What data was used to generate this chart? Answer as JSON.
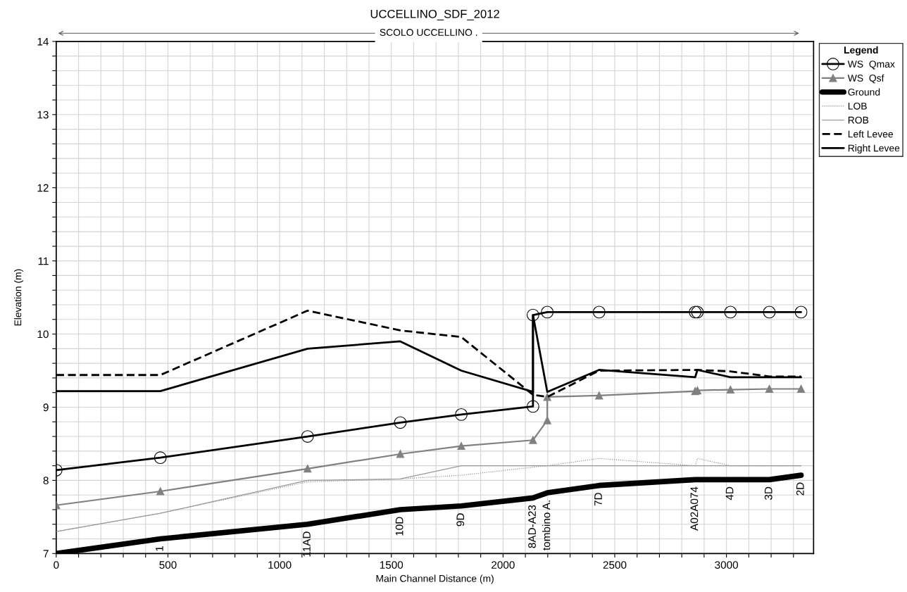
{
  "chart_data": {
    "type": "line",
    "title": "UCCELLINO_SDF_2012",
    "xlabel": "Main Channel Distance (m)",
    "ylabel": "Elevation (m)",
    "legend_title": "Legend",
    "series": [
      {
        "name": "WS  Qmax",
        "color": "#000000",
        "marker": "circle",
        "line_style": "solid",
        "x": [
          0,
          466,
          1125,
          1540,
          1813,
          2134,
          2134,
          2198,
          2430,
          2860,
          2870,
          3018,
          3192,
          3334
        ],
        "values": [
          8.14,
          8.31,
          8.6,
          8.79,
          8.9,
          9.01,
          10.26,
          10.3,
          10.3,
          10.3,
          10.3,
          10.3,
          10.3,
          10.3
        ]
      },
      {
        "name": "WS  Qsf",
        "color": "#808080",
        "marker": "triangle",
        "line_style": "solid",
        "x": [
          0,
          466,
          1125,
          1540,
          1813,
          2134,
          2198,
          2198,
          2430,
          2860,
          2870,
          3018,
          3192,
          3334
        ],
        "values": [
          7.66,
          7.85,
          8.16,
          8.36,
          8.47,
          8.55,
          8.82,
          9.14,
          9.16,
          9.22,
          9.23,
          9.24,
          9.25,
          9.25
        ]
      },
      {
        "name": "Ground",
        "color": "#000000",
        "marker": "none",
        "line_style": "solid",
        "x": [
          0,
          466,
          1125,
          1540,
          1813,
          2134,
          2198,
          2430,
          2860,
          3018,
          3192,
          3334
        ],
        "values": [
          7.0,
          7.2,
          7.4,
          7.6,
          7.65,
          7.76,
          7.83,
          7.93,
          8.01,
          8.01,
          8.01,
          8.07
        ]
      },
      {
        "name": "LOB",
        "color": "#808080",
        "marker": "none",
        "line_style": "dotted",
        "x": [
          0,
          466,
          1125,
          1540,
          1813,
          2134,
          2198,
          2430,
          2860,
          2870,
          3018,
          3192,
          3334
        ],
        "values": [
          7.3,
          7.55,
          7.98,
          8.02,
          8.07,
          8.18,
          8.2,
          8.3,
          8.2,
          8.3,
          8.2,
          8.2,
          8.2
        ]
      },
      {
        "name": "ROB",
        "color": "#999999",
        "marker": "none",
        "line_style": "solid",
        "x": [
          0,
          466,
          1125,
          1540,
          1813,
          2134,
          2198,
          2430,
          2860,
          3018,
          3192,
          3334
        ],
        "values": [
          7.3,
          7.55,
          8.0,
          8.02,
          8.2,
          8.2,
          8.2,
          8.2,
          8.2,
          8.2,
          8.2,
          8.2
        ]
      },
      {
        "name": "Left Levee",
        "color": "#000000",
        "marker": "none",
        "line_style": "dashed",
        "x": [
          0,
          466,
          1125,
          1540,
          1813,
          2134,
          2198,
          2430,
          2870,
          3018,
          3192,
          3334
        ],
        "values": [
          9.44,
          9.44,
          10.32,
          10.05,
          9.96,
          9.17,
          9.14,
          9.5,
          9.51,
          9.49,
          9.42,
          9.42
        ]
      },
      {
        "name": "Right Levee",
        "color": "#000000",
        "marker": "none",
        "line_style": "solid",
        "x": [
          0,
          466,
          1125,
          1540,
          1813,
          2134,
          2134,
          2198,
          2430,
          2860,
          2870,
          3018,
          3192,
          3334
        ],
        "values": [
          9.22,
          9.22,
          9.8,
          9.9,
          9.5,
          9.21,
          10.26,
          9.21,
          9.51,
          9.41,
          9.51,
          9.41,
          9.41,
          9.41
        ]
      }
    ],
    "annotations": [
      "SCOLO UCCELLINO .",
      {
        "text": "1",
        "x": 466,
        "y": 7.2
      },
      {
        "text": "11AD",
        "x": 1125,
        "y": 7.4
      },
      {
        "text": "10D",
        "x": 1540,
        "y": 7.6
      },
      {
        "text": "9D",
        "x": 1813,
        "y": 7.65
      },
      {
        "text": "8AD-A23",
        "x": 2134,
        "y": 7.76
      },
      {
        "text": "tombino A.",
        "x": 2198,
        "y": 7.83
      },
      {
        "text": "7D",
        "x": 2430,
        "y": 7.93
      },
      {
        "text": "A02A074",
        "x": 2860,
        "y": 8.01
      },
      {
        "text": "4D",
        "x": 3018,
        "y": 8.01
      },
      {
        "text": "3D",
        "x": 3192,
        "y": 8.01
      },
      {
        "text": "2D",
        "x": 3334,
        "y": 8.07
      }
    ],
    "xlim": [
      0,
      3390
    ],
    "ylim": [
      7,
      14
    ],
    "xticks": [
      0,
      {
        "value": 100,
        "label": null
      },
      {
        "value": 200,
        "label": null
      },
      {
        "value": 300,
        "label": null
      },
      {
        "value": 400,
        "label": null
      },
      500,
      {
        "value": 600,
        "label": null
      },
      {
        "value": 700,
        "label": null
      },
      {
        "value": 800,
        "label": null
      },
      {
        "value": 900,
        "label": null
      },
      1000,
      {
        "value": 1100,
        "label": null
      },
      {
        "value": 1200,
        "label": null
      },
      {
        "value": 1300,
        "label": null
      },
      {
        "value": 1400,
        "label": null
      },
      1500,
      {
        "value": 1600,
        "label": null
      },
      {
        "value": 1700,
        "label": null
      },
      {
        "value": 1800,
        "label": null
      },
      {
        "value": 1900,
        "label": null
      },
      2000,
      {
        "value": 2100,
        "label": null
      },
      {
        "value": 2200,
        "label": null
      },
      {
        "value": 2300,
        "label": null
      },
      {
        "value": 2400,
        "label": null
      },
      2500,
      {
        "value": 2600,
        "label": null
      },
      {
        "value": 2700,
        "label": null
      },
      {
        "value": 2800,
        "label": null
      },
      {
        "value": 2900,
        "label": null
      },
      3000,
      {
        "value": 3100,
        "label": null
      },
      {
        "value": 3200,
        "label": null
      },
      {
        "value": 3300,
        "label": null
      }
    ],
    "yticks": [
      7,
      {
        "value": 7.2,
        "label": null
      },
      {
        "value": 7.4,
        "label": null
      },
      {
        "value": 7.6,
        "label": null
      },
      {
        "value": 7.8,
        "label": null
      },
      8,
      {
        "value": 8.2,
        "label": null
      },
      {
        "value": 8.4,
        "label": null
      },
      {
        "value": 8.6,
        "label": null
      },
      {
        "value": 8.8,
        "label": null
      },
      9,
      {
        "value": 9.2,
        "label": null
      },
      {
        "value": 9.4,
        "label": null
      },
      {
        "value": 9.6,
        "label": null
      },
      {
        "value": 9.8,
        "label": null
      },
      10,
      {
        "value": 10.2,
        "label": null
      },
      {
        "value": 10.4,
        "label": null
      },
      {
        "value": 10.6,
        "label": null
      },
      {
        "value": 10.8,
        "label": null
      },
      11,
      {
        "value": 11.2,
        "label": null
      },
      {
        "value": 11.4,
        "label": null
      },
      {
        "value": 11.6,
        "label": null
      },
      {
        "value": 11.8,
        "label": null
      },
      12,
      {
        "value": 12.2,
        "label": null
      },
      {
        "value": 12.4,
        "label": null
      },
      {
        "value": 12.6,
        "label": null
      },
      {
        "value": 12.8,
        "label": null
      },
      13,
      {
        "value": 13.2,
        "label": null
      },
      {
        "value": 13.4,
        "label": null
      },
      {
        "value": 13.6,
        "label": null
      },
      {
        "value": 13.8,
        "label": null
      },
      14
    ],
    "grid": true,
    "legend": "top right"
  }
}
